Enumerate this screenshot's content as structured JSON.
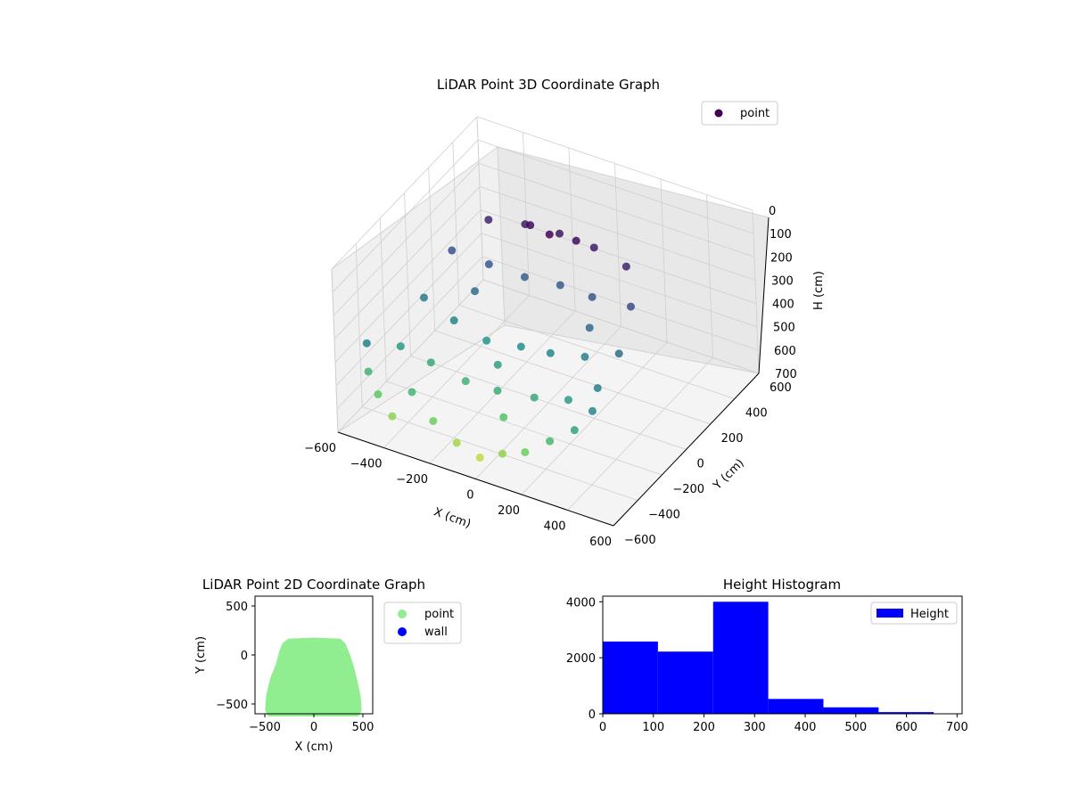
{
  "colors": {
    "colormap": "viridis",
    "scatter2d_point": "#90ee90",
    "scatter2d_wall": "#0000ff",
    "hist_bar": "#0000ff",
    "legend_point_3d": "#440154"
  },
  "chart_data": [
    {
      "type": "scatter",
      "projection": "3d",
      "title": "LiDAR Point 3D Coordinate Graph",
      "xlabel": "X (cm)",
      "ylabel": "Y (cm)",
      "zlabel": "H (cm)",
      "xlim": [
        -600,
        600
      ],
      "ylim": [
        -600,
        600
      ],
      "zlim": [
        700,
        0
      ],
      "z_inverted": true,
      "xticks": [
        "−600",
        "−400",
        "−200",
        "0",
        "200",
        "400",
        "600"
      ],
      "yticks": [
        "−600",
        "−400",
        "−200",
        "0",
        "200",
        "400",
        "600"
      ],
      "zticks": [
        "0",
        "100",
        "200",
        "300",
        "400",
        "500",
        "600",
        "700"
      ],
      "color_by": "height",
      "colormap": "viridis",
      "legend": {
        "position": "top-right",
        "entries": [
          "point"
        ]
      },
      "series": [
        {
          "name": "point",
          "shape": "half-dome of rings, points clustered between 0 and 480 cm height",
          "points": [
            {
              "x": -480,
              "y": -560,
              "h": 300
            },
            {
              "x": -500,
              "y": -520,
              "h": 450
            },
            {
              "x": -450,
              "y": -540,
              "h": 520
            },
            {
              "x": -380,
              "y": -560,
              "h": 580
            },
            {
              "x": -300,
              "y": -540,
              "h": 460
            },
            {
              "x": -200,
              "y": -560,
              "h": 540
            },
            {
              "x": -100,
              "y": -560,
              "h": 600
            },
            {
              "x": 0,
              "y": -560,
              "h": 630
            },
            {
              "x": 100,
              "y": -560,
              "h": 580
            },
            {
              "x": 200,
              "y": -560,
              "h": 540
            },
            {
              "x": 300,
              "y": -540,
              "h": 470
            },
            {
              "x": 400,
              "y": -520,
              "h": 400
            },
            {
              "x": 460,
              "y": -480,
              "h": 320
            },
            {
              "x": -420,
              "y": -400,
              "h": 380
            },
            {
              "x": -300,
              "y": -380,
              "h": 420
            },
            {
              "x": -150,
              "y": -380,
              "h": 450
            },
            {
              "x": 0,
              "y": -400,
              "h": 430
            },
            {
              "x": 150,
              "y": -380,
              "h": 420
            },
            {
              "x": 300,
              "y": -380,
              "h": 380
            },
            {
              "x": 420,
              "y": -360,
              "h": 300
            },
            {
              "x": -420,
              "y": -200,
              "h": 280
            },
            {
              "x": -280,
              "y": -220,
              "h": 320
            },
            {
              "x": -140,
              "y": -220,
              "h": 360
            },
            {
              "x": 0,
              "y": -200,
              "h": 350
            },
            {
              "x": 140,
              "y": -220,
              "h": 320
            },
            {
              "x": 280,
              "y": -200,
              "h": 300
            },
            {
              "x": 420,
              "y": -180,
              "h": 250
            },
            {
              "x": -400,
              "y": 0,
              "h": 180
            },
            {
              "x": -250,
              "y": 20,
              "h": 200
            },
            {
              "x": -100,
              "y": 30,
              "h": 210
            },
            {
              "x": 50,
              "y": 40,
              "h": 200
            },
            {
              "x": 200,
              "y": 20,
              "h": 190
            },
            {
              "x": 380,
              "y": 0,
              "h": 160
            },
            {
              "x": -300,
              "y": 120,
              "h": 80
            },
            {
              "x": -150,
              "y": 140,
              "h": 60
            },
            {
              "x": 0,
              "y": 140,
              "h": 50
            },
            {
              "x": 150,
              "y": 140,
              "h": 60
            },
            {
              "x": 300,
              "y": 120,
              "h": 80
            },
            {
              "x": -100,
              "y": 90,
              "h": 20
            },
            {
              "x": 100,
              "y": 90,
              "h": 20
            },
            {
              "x": 0,
              "y": 60,
              "h": 10
            },
            {
              "x": -250,
              "y": -100,
              "h": 250
            },
            {
              "x": 250,
              "y": -100,
              "h": 240
            },
            {
              "x": -50,
              "y": -300,
              "h": 390
            },
            {
              "x": 50,
              "y": -450,
              "h": 500
            }
          ]
        }
      ]
    },
    {
      "type": "scatter",
      "title": "LiDAR Point 2D Coordinate Graph",
      "xlabel": "X (cm)",
      "ylabel": "Y (cm)",
      "xlim": [
        -600,
        600
      ],
      "ylim": [
        -600,
        600
      ],
      "xticks": [
        "−500",
        "0",
        "500"
      ],
      "yticks": [
        "500",
        "0",
        "−500"
      ],
      "legend": {
        "position": "outside-right",
        "entries": [
          "point",
          "wall"
        ]
      },
      "series": [
        {
          "name": "point",
          "color": "#90ee90",
          "outline": [
            {
              "x": -450,
              "y": -600
            },
            {
              "x": -470,
              "y": -560
            },
            {
              "x": -460,
              "y": -420
            },
            {
              "x": -420,
              "y": -250
            },
            {
              "x": -360,
              "y": -100
            },
            {
              "x": -330,
              "y": 20
            },
            {
              "x": -300,
              "y": 100
            },
            {
              "x": -250,
              "y": 140
            },
            {
              "x": 0,
              "y": 150
            },
            {
              "x": 260,
              "y": 140
            },
            {
              "x": 300,
              "y": 100
            },
            {
              "x": 340,
              "y": 0
            },
            {
              "x": 380,
              "y": -120
            },
            {
              "x": 420,
              "y": -280
            },
            {
              "x": 450,
              "y": -420
            },
            {
              "x": 460,
              "y": -560
            },
            {
              "x": 440,
              "y": -600
            }
          ]
        },
        {
          "name": "wall",
          "color": "#0000ff",
          "points": []
        }
      ]
    },
    {
      "type": "bar",
      "subtype": "histogram",
      "title": "Height Histogram",
      "xlim": [
        0,
        710
      ],
      "ylim": [
        0,
        4200
      ],
      "xticks": [
        "0",
        "100",
        "200",
        "300",
        "400",
        "500",
        "600",
        "700"
      ],
      "yticks": [
        "0",
        "2000",
        "4000"
      ],
      "legend": {
        "position": "top-right",
        "entries": [
          "Height"
        ]
      },
      "series": [
        {
          "name": "Height",
          "color": "#0000ff",
          "bin_edges": [
            0,
            109,
            218,
            327,
            436,
            545,
            654
          ],
          "values": [
            2580,
            2220,
            4000,
            530,
            230,
            60
          ]
        }
      ]
    }
  ]
}
